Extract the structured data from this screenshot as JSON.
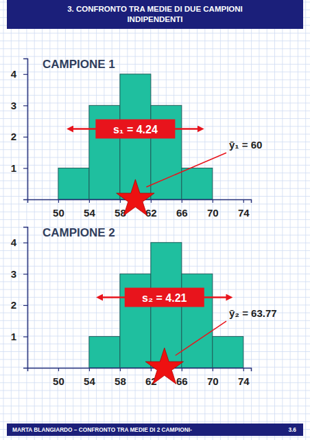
{
  "header": {
    "title": "3. CONFRONTO TRA MEDIE DI DUE CAMPIONI INDIPENDENTI"
  },
  "chart_data": [
    {
      "type": "histogram",
      "title": "CAMPIONE 1",
      "bins": [
        50,
        54,
        58,
        62,
        66,
        70
      ],
      "counts": [
        1,
        3,
        4,
        3,
        1
      ],
      "color": "#1fbf9f",
      "xlim": [
        46,
        75
      ],
      "ylim": [
        0,
        4.5
      ],
      "xticks": [
        50,
        54,
        58,
        62,
        66,
        70,
        74
      ],
      "yticks": [
        1,
        2,
        3,
        4
      ],
      "grid": false,
      "sd": {
        "value": 4.24,
        "label": "s₁ = 4.24"
      },
      "mean": {
        "value": 60,
        "label": "ȳ₁ = 60"
      }
    },
    {
      "type": "histogram",
      "title": "CAMPIONE 2",
      "bins": [
        54,
        58,
        62,
        66,
        70,
        74
      ],
      "counts": [
        1,
        3,
        4,
        3,
        1
      ],
      "color": "#1fbf9f",
      "xlim": [
        46,
        75
      ],
      "ylim": [
        0,
        4.5
      ],
      "xticks": [
        50,
        54,
        58,
        62,
        66,
        70,
        74
      ],
      "yticks": [
        1,
        2,
        3,
        4
      ],
      "grid": false,
      "sd": {
        "value": 4.21,
        "label": "s₂ = 4.21"
      },
      "mean": {
        "value": 63.77,
        "label": "ȳ₂ = 63.77"
      }
    }
  ],
  "footer": {
    "text": "MARTA BLANGIARDO – CONFRONTO TRA MEDIE DI 2 CAMPIONI-",
    "page": "3.6"
  }
}
